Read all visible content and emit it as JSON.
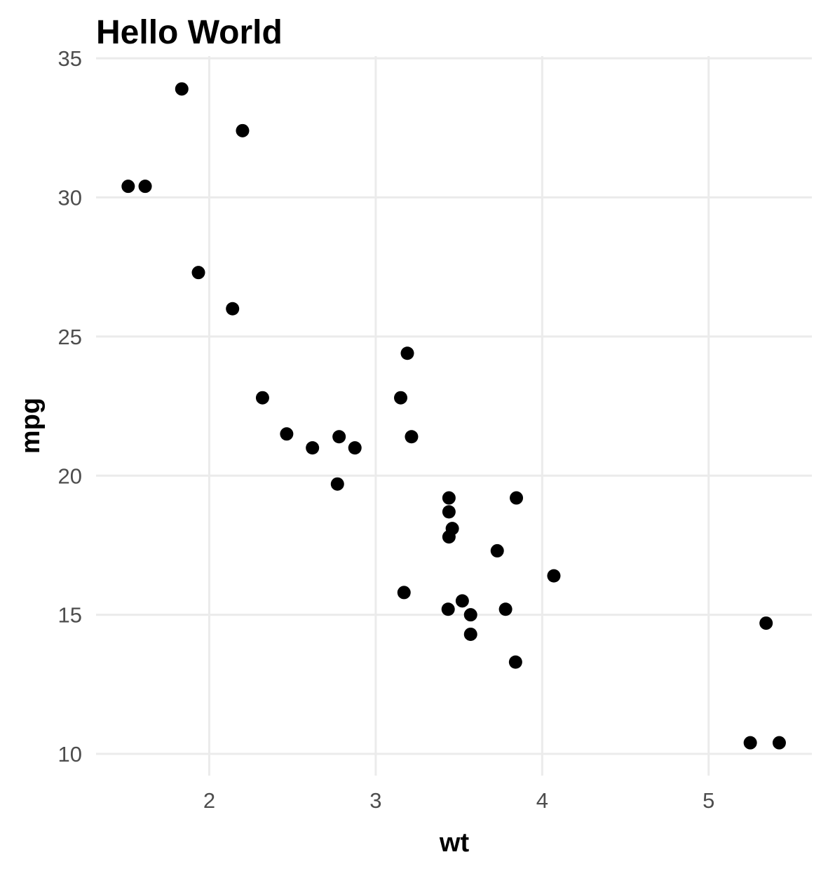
{
  "chart_data": {
    "type": "scatter",
    "title": "Hello World",
    "xlabel": "wt",
    "ylabel": "mpg",
    "xlim": [
      1.32,
      5.62
    ],
    "ylim": [
      9.22,
      35.08
    ],
    "x_ticks": [
      2,
      3,
      4,
      5
    ],
    "y_ticks": [
      10,
      15,
      20,
      25,
      30,
      35
    ],
    "grid": true,
    "legend": "none",
    "point_color": "#000000",
    "points": [
      {
        "x": 2.62,
        "y": 21.0
      },
      {
        "x": 2.875,
        "y": 21.0
      },
      {
        "x": 2.32,
        "y": 22.8
      },
      {
        "x": 3.215,
        "y": 21.4
      },
      {
        "x": 3.44,
        "y": 18.7
      },
      {
        "x": 3.46,
        "y": 18.1
      },
      {
        "x": 3.57,
        "y": 14.3
      },
      {
        "x": 3.19,
        "y": 24.4
      },
      {
        "x": 3.15,
        "y": 22.8
      },
      {
        "x": 3.44,
        "y": 19.2
      },
      {
        "x": 3.44,
        "y": 17.8
      },
      {
        "x": 4.07,
        "y": 16.4
      },
      {
        "x": 3.73,
        "y": 17.3
      },
      {
        "x": 3.78,
        "y": 15.2
      },
      {
        "x": 5.25,
        "y": 10.4
      },
      {
        "x": 5.424,
        "y": 10.4
      },
      {
        "x": 5.345,
        "y": 14.7
      },
      {
        "x": 2.2,
        "y": 32.4
      },
      {
        "x": 1.615,
        "y": 30.4
      },
      {
        "x": 1.835,
        "y": 33.9
      },
      {
        "x": 2.465,
        "y": 21.5
      },
      {
        "x": 3.52,
        "y": 15.5
      },
      {
        "x": 3.435,
        "y": 15.2
      },
      {
        "x": 3.84,
        "y": 13.3
      },
      {
        "x": 3.845,
        "y": 19.2
      },
      {
        "x": 1.935,
        "y": 27.3
      },
      {
        "x": 2.14,
        "y": 26.0
      },
      {
        "x": 1.513,
        "y": 30.4
      },
      {
        "x": 3.17,
        "y": 15.8
      },
      {
        "x": 2.77,
        "y": 19.7
      },
      {
        "x": 3.57,
        "y": 15.0
      },
      {
        "x": 2.78,
        "y": 21.4
      }
    ]
  }
}
